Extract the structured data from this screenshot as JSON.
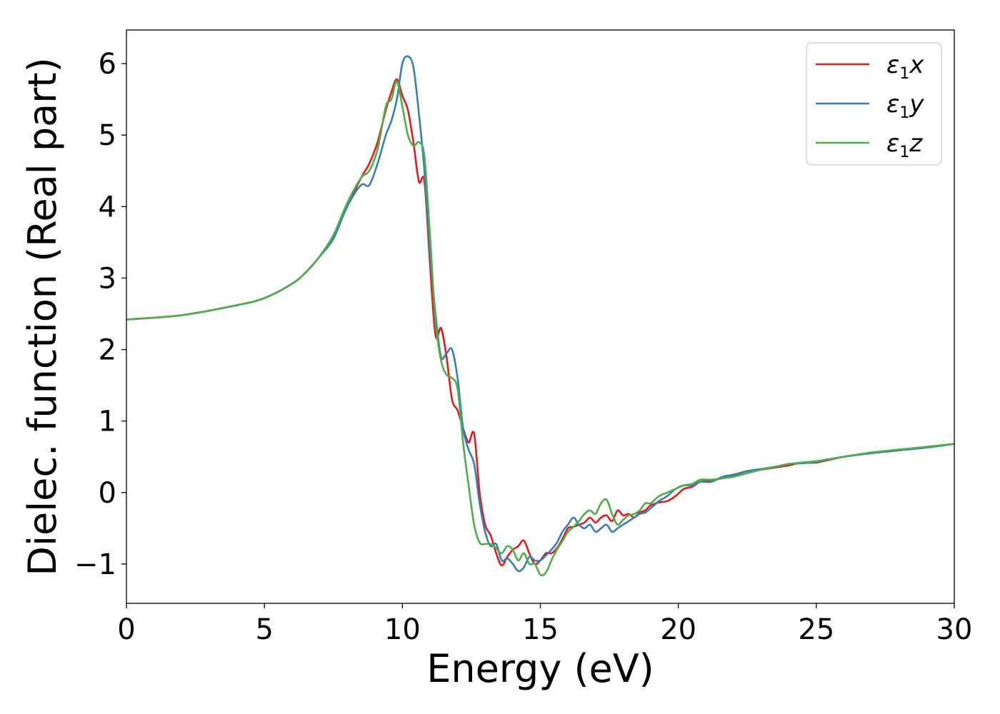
{
  "chart_data": {
    "type": "line",
    "xlabel": "Energy (eV)",
    "ylabel": "Dielec. function (Real part)",
    "xlim": [
      0,
      30
    ],
    "ylim": [
      -1.55,
      6.47
    ],
    "xticks": [
      0,
      5,
      10,
      15,
      20,
      25,
      30
    ],
    "yticks": [
      -1,
      0,
      1,
      2,
      3,
      4,
      5,
      6
    ],
    "xtick_labels": [
      "0",
      "5",
      "10",
      "15",
      "20",
      "25",
      "30"
    ],
    "ytick_labels": [
      "−1",
      "0",
      "1",
      "2",
      "3",
      "4",
      "5",
      "6"
    ],
    "grid": false,
    "legend_position": "top-right",
    "series": [
      {
        "name": "ε₁x",
        "legend_main": "ε",
        "legend_sub": "1",
        "legend_var": "x",
        "color": "#e41a1c",
        "x": [
          0,
          2,
          4,
          5,
          6,
          6.5,
          7,
          7.5,
          8,
          8.5,
          8.8,
          9.1,
          9.4,
          9.6,
          9.8,
          10.0,
          10.2,
          10.4,
          10.6,
          10.8,
          11.0,
          11.2,
          11.4,
          11.6,
          11.8,
          12.0,
          12.2,
          12.4,
          12.6,
          12.8,
          13.0,
          13.2,
          13.4,
          13.6,
          13.8,
          14.0,
          14.2,
          14.4,
          14.6,
          14.8,
          15.0,
          15.2,
          15.4,
          15.6,
          15.8,
          16.0,
          16.2,
          16.4,
          16.6,
          16.8,
          17.0,
          17.2,
          17.4,
          17.6,
          17.8,
          18.0,
          18.2,
          18.4,
          18.6,
          18.8,
          19.0,
          19.3,
          19.6,
          19.9,
          20.2,
          20.5,
          20.8,
          21.2,
          21.6,
          22.0,
          22.5,
          23.0,
          23.5,
          24.0,
          24.5,
          25.0,
          26.0,
          27.0,
          28.0,
          29.0,
          30.0
        ],
        "y": [
          2.42,
          2.48,
          2.62,
          2.72,
          2.92,
          3.08,
          3.3,
          3.6,
          4.0,
          4.4,
          4.6,
          4.9,
          5.35,
          5.6,
          5.78,
          5.55,
          5.35,
          4.9,
          4.35,
          4.35,
          3.2,
          2.2,
          2.3,
          1.9,
          1.3,
          1.15,
          0.9,
          0.7,
          0.82,
          0.0,
          -0.45,
          -0.6,
          -0.85,
          -1.02,
          -0.9,
          -0.8,
          -0.75,
          -0.67,
          -0.85,
          -1.0,
          -0.95,
          -0.85,
          -0.85,
          -0.78,
          -0.65,
          -0.5,
          -0.48,
          -0.45,
          -0.42,
          -0.35,
          -0.42,
          -0.35,
          -0.32,
          -0.4,
          -0.25,
          -0.32,
          -0.3,
          -0.35,
          -0.28,
          -0.25,
          -0.18,
          -0.14,
          -0.12,
          -0.05,
          0.05,
          0.08,
          0.15,
          0.17,
          0.2,
          0.24,
          0.3,
          0.32,
          0.35,
          0.38,
          0.42,
          0.42,
          0.5,
          0.55,
          0.59,
          0.63,
          0.68
        ]
      },
      {
        "name": "ε₁y",
        "legend_main": "ε",
        "legend_sub": "1",
        "legend_var": "y",
        "color": "#377eb8",
        "x": [
          0,
          2,
          4,
          5,
          6,
          6.5,
          7,
          7.5,
          8,
          8.5,
          8.8,
          9.1,
          9.4,
          9.6,
          9.8,
          10.0,
          10.2,
          10.4,
          10.6,
          10.8,
          11.0,
          11.2,
          11.4,
          11.6,
          11.8,
          12.0,
          12.2,
          12.4,
          12.6,
          12.8,
          13.0,
          13.2,
          13.4,
          13.6,
          13.8,
          14.0,
          14.2,
          14.4,
          14.6,
          14.8,
          15.0,
          15.2,
          15.4,
          15.6,
          15.8,
          16.0,
          16.2,
          16.4,
          16.6,
          16.8,
          17.0,
          17.2,
          17.4,
          17.6,
          17.8,
          18.0,
          18.2,
          18.4,
          18.6,
          18.8,
          19.0,
          19.3,
          19.6,
          19.9,
          20.2,
          20.5,
          20.8,
          21.2,
          21.6,
          22.0,
          22.5,
          23.0,
          23.5,
          24.0,
          24.5,
          25.0,
          26.0,
          27.0,
          28.0,
          29.0,
          30.0
        ],
        "y": [
          2.42,
          2.48,
          2.62,
          2.72,
          2.92,
          3.08,
          3.3,
          3.55,
          4.0,
          4.3,
          4.3,
          4.6,
          5.0,
          5.2,
          5.5,
          6.0,
          6.1,
          5.95,
          5.3,
          4.5,
          3.4,
          2.5,
          1.9,
          1.95,
          2.0,
          1.6,
          0.9,
          0.6,
          0.4,
          -0.15,
          -0.55,
          -0.75,
          -0.72,
          -0.95,
          -0.92,
          -1.0,
          -1.1,
          -1.05,
          -0.9,
          -0.95,
          -0.95,
          -0.88,
          -0.8,
          -0.7,
          -0.55,
          -0.45,
          -0.35,
          -0.45,
          -0.5,
          -0.45,
          -0.55,
          -0.5,
          -0.45,
          -0.55,
          -0.5,
          -0.45,
          -0.4,
          -0.35,
          -0.3,
          -0.28,
          -0.22,
          -0.12,
          -0.05,
          0.05,
          0.1,
          0.1,
          0.15,
          0.15,
          0.22,
          0.25,
          0.3,
          0.33,
          0.36,
          0.4,
          0.41,
          0.43,
          0.5,
          0.55,
          0.59,
          0.63,
          0.68
        ]
      },
      {
        "name": "ε₁z",
        "legend_main": "ε",
        "legend_sub": "1",
        "legend_var": "z",
        "color": "#4daf4a",
        "x": [
          0,
          2,
          4,
          5,
          6,
          6.5,
          7,
          7.5,
          8,
          8.5,
          8.8,
          9.1,
          9.4,
          9.6,
          9.8,
          10.0,
          10.2,
          10.4,
          10.6,
          10.8,
          11.0,
          11.2,
          11.4,
          11.6,
          11.8,
          12.0,
          12.2,
          12.4,
          12.6,
          12.8,
          13.0,
          13.2,
          13.4,
          13.6,
          13.8,
          14.0,
          14.2,
          14.4,
          14.6,
          14.8,
          15.0,
          15.2,
          15.4,
          15.6,
          15.8,
          16.0,
          16.2,
          16.4,
          16.6,
          16.8,
          17.0,
          17.2,
          17.4,
          17.6,
          17.8,
          18.0,
          18.2,
          18.4,
          18.6,
          18.8,
          19.0,
          19.3,
          19.6,
          19.9,
          20.2,
          20.5,
          20.8,
          21.2,
          21.6,
          22.0,
          22.5,
          23.0,
          23.5,
          24.0,
          24.5,
          25.0,
          26.0,
          27.0,
          28.0,
          29.0,
          30.0
        ],
        "y": [
          2.42,
          2.48,
          2.62,
          2.72,
          2.92,
          3.08,
          3.3,
          3.6,
          4.05,
          4.4,
          4.5,
          4.8,
          5.4,
          5.5,
          5.75,
          5.4,
          5.0,
          4.85,
          4.9,
          4.7,
          3.6,
          2.4,
          1.85,
          1.65,
          1.6,
          1.45,
          0.7,
          0.1,
          -0.45,
          -0.7,
          -0.72,
          -0.72,
          -0.78,
          -0.85,
          -0.75,
          -0.8,
          -0.95,
          -0.85,
          -1.0,
          -1.0,
          -1.15,
          -1.12,
          -0.95,
          -0.8,
          -0.68,
          -0.55,
          -0.48,
          -0.4,
          -0.3,
          -0.25,
          -0.3,
          -0.15,
          -0.1,
          -0.3,
          -0.45,
          -0.38,
          -0.32,
          -0.3,
          -0.25,
          -0.15,
          -0.15,
          -0.05,
          0.0,
          0.05,
          0.1,
          0.12,
          0.18,
          0.18,
          0.2,
          0.22,
          0.27,
          0.32,
          0.36,
          0.4,
          0.42,
          0.44,
          0.5,
          0.56,
          0.6,
          0.64,
          0.68
        ]
      }
    ]
  }
}
